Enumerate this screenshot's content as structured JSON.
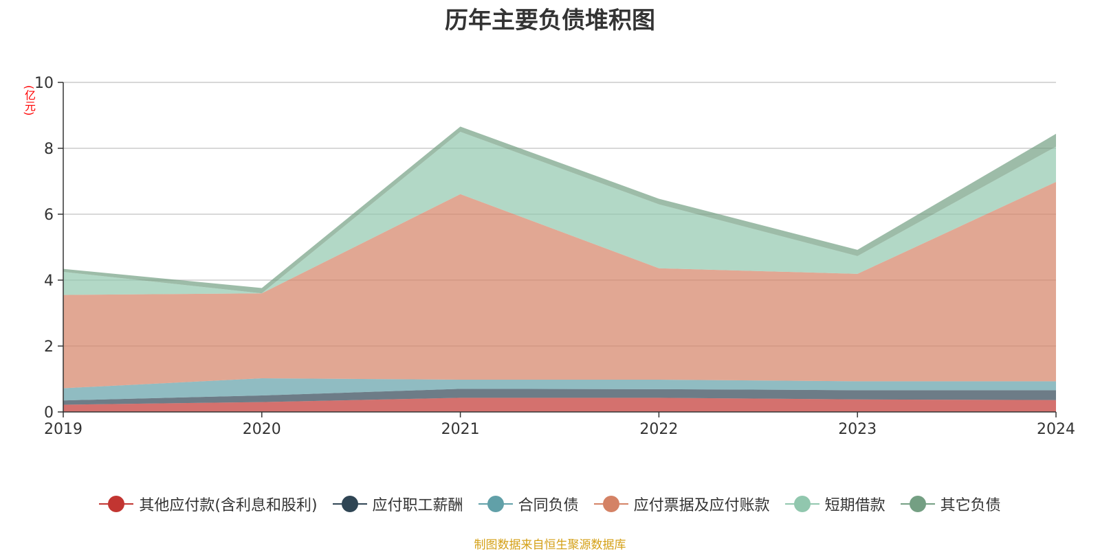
{
  "chart_data": {
    "type": "area",
    "title": "历年主要负债堆积图",
    "ylabel": "(亿元)",
    "xlabel": "",
    "categories": [
      "2019",
      "2020",
      "2021",
      "2022",
      "2023",
      "2024"
    ],
    "ylim": [
      0,
      10
    ],
    "yticks": [
      0,
      2,
      4,
      6,
      8,
      10
    ],
    "stacked": true,
    "grid": true,
    "legend_position": "bottom",
    "series": [
      {
        "name": "其他应付款(含利息和股利)",
        "color": "#c23531",
        "values": [
          0.22,
          0.3,
          0.43,
          0.43,
          0.38,
          0.36
        ]
      },
      {
        "name": "应付职工薪酬",
        "color": "#2f4554",
        "values": [
          0.13,
          0.2,
          0.27,
          0.26,
          0.28,
          0.3
        ]
      },
      {
        "name": "合同负债",
        "color": "#61a0a8",
        "values": [
          0.37,
          0.52,
          0.28,
          0.29,
          0.27,
          0.27
        ]
      },
      {
        "name": "应付票据及应付账款",
        "color": "#d48265",
        "values": [
          2.83,
          2.58,
          5.63,
          3.38,
          3.26,
          6.05
        ]
      },
      {
        "name": "短期借款",
        "color": "#91c7ae",
        "values": [
          0.7,
          0.0,
          1.89,
          1.94,
          0.54,
          1.07
        ]
      },
      {
        "name": "其它负债",
        "color": "#749f83",
        "values": [
          0.09,
          0.16,
          0.16,
          0.17,
          0.19,
          0.39
        ]
      }
    ]
  },
  "source_note": "制图数据来自恒生聚源数据库"
}
